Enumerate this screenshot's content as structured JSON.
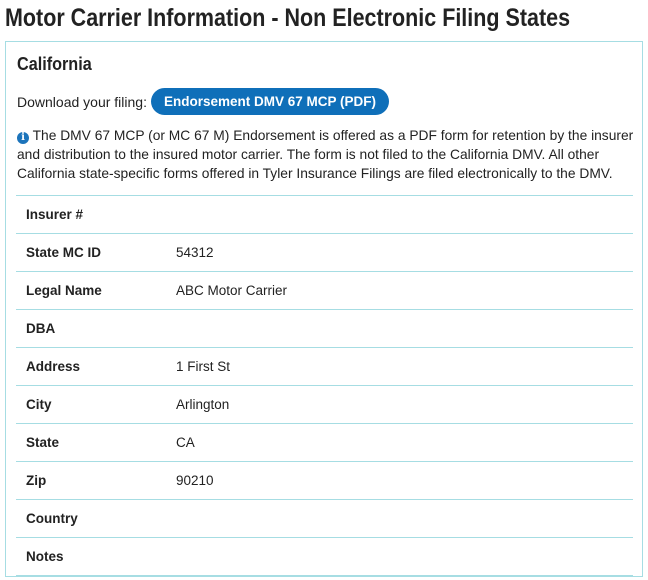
{
  "page_title": "Motor Carrier Information - Non Electronic Filing States",
  "section": {
    "state": "California",
    "download_label": "Download your filing:",
    "download_button": "Endorsement DMV 67 MCP (PDF)",
    "info_icon": "info-circle-icon",
    "info_text": "The DMV 67 MCP (or MC 67 M) Endorsement is offered as a PDF form for retention by the insurer and distribution to the insured motor carrier. The form is not filed to the California DMV. All other California state-specific forms offered in Tyler Insurance Filings are filed electronically to the DMV.",
    "rows": [
      {
        "label": "Insurer #",
        "value": ""
      },
      {
        "label": "State MC ID",
        "value": "54312"
      },
      {
        "label": "Legal Name",
        "value": "ABC Motor Carrier"
      },
      {
        "label": "DBA",
        "value": ""
      },
      {
        "label": "Address",
        "value": "1 First St"
      },
      {
        "label": "City",
        "value": "Arlington"
      },
      {
        "label": "State",
        "value": "CA"
      },
      {
        "label": "Zip",
        "value": "90210"
      },
      {
        "label": "Country",
        "value": ""
      },
      {
        "label": "Notes",
        "value": ""
      }
    ]
  },
  "colors": {
    "accent": "#0f6fb9",
    "border": "#a6dde3"
  }
}
